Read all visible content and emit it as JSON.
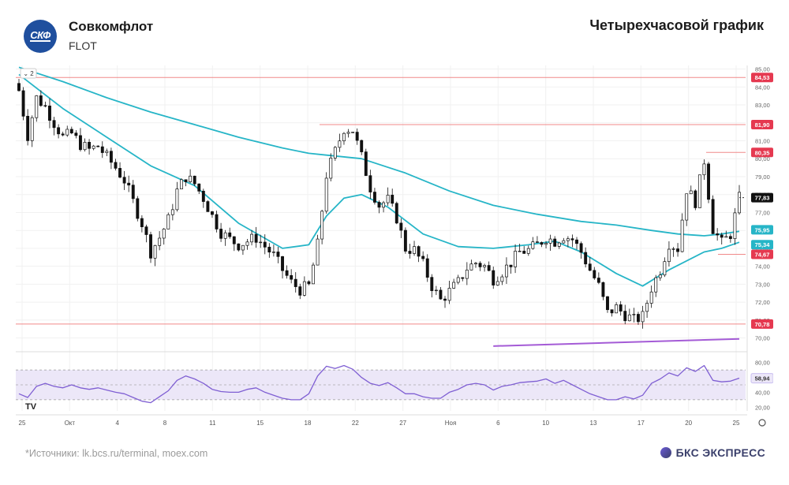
{
  "header": {
    "logo_text": "СКФ",
    "company": "Совкомфлот",
    "ticker": "FLOT",
    "chart_title": "Четырехчасовой график"
  },
  "footer": {
    "source_prefix": "*Источники: ",
    "source_link1": "lk.bcs.ru/terminal",
    "source_sep": ", ",
    "source_link2": "moex.com",
    "brand": "БКС ЭКСПРЕСС"
  },
  "colors": {
    "candle": "#111111",
    "ma_fast": "#26b5c7",
    "ma_slow": "#26b5c7",
    "level_line": "#f08a8a",
    "level_tag": "#e53950",
    "trend_line": "#a45bd6",
    "rsi_line": "#7f5fd3",
    "rsi_band": "#ece7f8"
  },
  "chart_data": [
    {
      "type": "candlestick",
      "instrument": "FLOT",
      "timeframe": "4H",
      "collapse_button": "2",
      "ylim": [
        69.5,
        85.2
      ],
      "y_ticks": [
        70,
        71,
        72,
        73,
        74,
        75,
        76,
        77,
        78,
        79,
        80,
        81,
        82,
        83,
        84,
        85
      ],
      "y_tick_labels": [
        "70,00",
        "71,00",
        "72,00",
        "73,00",
        "74,00",
        "75,00",
        "76,00",
        "77,00",
        "78,00",
        "79,00",
        "80,00",
        "81,00",
        "82,00",
        "83,00",
        "84,00",
        "85,00"
      ],
      "x_tick_labels": [
        "25",
        "Окт",
        "4",
        "8",
        "11",
        "15",
        "18",
        "22",
        "27",
        "Ноя",
        "6",
        "10",
        "13",
        "17",
        "20",
        "25"
      ],
      "close_path": [
        [
          0,
          83.8
        ],
        [
          2,
          81.3
        ],
        [
          4,
          83.4
        ],
        [
          6,
          82.9
        ],
        [
          8,
          82.0
        ],
        [
          10,
          81.2
        ],
        [
          12,
          81.4
        ],
        [
          14,
          80.8
        ],
        [
          16,
          80.5
        ],
        [
          18,
          80.7
        ],
        [
          20,
          80.1
        ],
        [
          22,
          79.5
        ],
        [
          24,
          78.8
        ],
        [
          26,
          77.6
        ],
        [
          28,
          76.4
        ],
        [
          30,
          74.8
        ],
        [
          32,
          75.6
        ],
        [
          34,
          76.6
        ],
        [
          36,
          78.2
        ],
        [
          38,
          79.0
        ],
        [
          40,
          78.6
        ],
        [
          42,
          77.8
        ],
        [
          44,
          76.8
        ],
        [
          46,
          75.9
        ],
        [
          48,
          75.5
        ],
        [
          50,
          75.2
        ],
        [
          52,
          75.4
        ],
        [
          54,
          75.6
        ],
        [
          56,
          75.1
        ],
        [
          58,
          74.6
        ],
        [
          60,
          73.8
        ],
        [
          62,
          73.1
        ],
        [
          64,
          72.7
        ],
        [
          66,
          72.9
        ],
        [
          68,
          75.2
        ],
        [
          70,
          79.1
        ],
        [
          72,
          80.4
        ],
        [
          74,
          81.7
        ],
        [
          76,
          81.6
        ],
        [
          78,
          80.1
        ],
        [
          80,
          78.4
        ],
        [
          82,
          77.4
        ],
        [
          84,
          77.7
        ],
        [
          86,
          76.7
        ],
        [
          88,
          75.0
        ],
        [
          90,
          74.9
        ],
        [
          92,
          74.1
        ],
        [
          94,
          72.9
        ],
        [
          96,
          72.1
        ],
        [
          98,
          72.6
        ],
        [
          100,
          73.1
        ],
        [
          102,
          73.9
        ],
        [
          104,
          74.2
        ],
        [
          106,
          74.0
        ],
        [
          108,
          73.3
        ],
        [
          110,
          73.7
        ],
        [
          112,
          74.2
        ],
        [
          114,
          74.8
        ],
        [
          116,
          74.9
        ],
        [
          118,
          75.2
        ],
        [
          120,
          75.6
        ],
        [
          122,
          75.4
        ],
        [
          124,
          75.7
        ],
        [
          126,
          75.5
        ],
        [
          128,
          74.8
        ],
        [
          130,
          73.8
        ],
        [
          132,
          72.9
        ],
        [
          134,
          71.4
        ],
        [
          136,
          71.7
        ],
        [
          138,
          71.3
        ],
        [
          140,
          71.0
        ],
        [
          142,
          71.2
        ],
        [
          144,
          72.8
        ],
        [
          146,
          73.8
        ],
        [
          148,
          75.3
        ],
        [
          150,
          75.0
        ],
        [
          152,
          78.3
        ],
        [
          154,
          77.6
        ],
        [
          156,
          79.9
        ],
        [
          158,
          76.1
        ],
        [
          160,
          75.3
        ],
        [
          162,
          75.8
        ],
        [
          164,
          77.8
        ]
      ],
      "series": [
        {
          "name": "",
          "kind": "moving-average-fast",
          "values": [
            [
              0,
              84.7
            ],
            [
              10,
              82.8
            ],
            [
              20,
              81.2
            ],
            [
              30,
              79.6
            ],
            [
              40,
              78.5
            ],
            [
              50,
              76.4
            ],
            [
              60,
              75.0
            ],
            [
              66,
              75.2
            ],
            [
              70,
              76.8
            ],
            [
              74,
              77.8
            ],
            [
              78,
              78.0
            ],
            [
              84,
              77.3
            ],
            [
              92,
              75.8
            ],
            [
              100,
              75.1
            ],
            [
              108,
              75.0
            ],
            [
              116,
              75.2
            ],
            [
              122,
              75.4
            ],
            [
              128,
              74.8
            ],
            [
              136,
              73.6
            ],
            [
              142,
              72.9
            ],
            [
              148,
              73.8
            ],
            [
              156,
              74.8
            ],
            [
              160,
              75.0
            ],
            [
              164,
              75.34
            ]
          ]
        },
        {
          "name": "",
          "kind": "moving-average-slow",
          "values": [
            [
              0,
              85.1
            ],
            [
              10,
              84.3
            ],
            [
              20,
              83.4
            ],
            [
              30,
              82.6
            ],
            [
              40,
              81.9
            ],
            [
              50,
              81.2
            ],
            [
              60,
              80.6
            ],
            [
              66,
              80.3
            ],
            [
              70,
              80.2
            ],
            [
              78,
              80.0
            ],
            [
              88,
              79.2
            ],
            [
              98,
              78.2
            ],
            [
              108,
              77.4
            ],
            [
              118,
              76.9
            ],
            [
              128,
              76.5
            ],
            [
              136,
              76.3
            ],
            [
              144,
              76.0
            ],
            [
              150,
              75.8
            ],
            [
              156,
              75.7
            ],
            [
              160,
              75.8
            ],
            [
              164,
              75.95
            ]
          ]
        }
      ],
      "levels": [
        84.53,
        81.9,
        80.35,
        74.67,
        70.78
      ],
      "level_labels": [
        "84,53",
        "81,90",
        "80,35",
        "74,67",
        "70,78"
      ],
      "last_price": 77.83,
      "last_price_label": "77,83",
      "ma_labels": [
        "75,95",
        "75,34"
      ],
      "trend_line": [
        [
          108,
          69.55
        ],
        [
          164,
          69.95
        ]
      ]
    },
    {
      "type": "line",
      "name": "RSI",
      "ylim": [
        15,
        85
      ],
      "y_ticks": [
        20,
        40,
        60,
        80
      ],
      "y_tick_labels": [
        "20,00",
        "40,00",
        "60,00",
        "80,00"
      ],
      "band": [
        30,
        70
      ],
      "last_value": 58.94,
      "last_value_label": "58,94",
      "values": [
        [
          0,
          38
        ],
        [
          2,
          33
        ],
        [
          4,
          48
        ],
        [
          6,
          52
        ],
        [
          8,
          48
        ],
        [
          10,
          46
        ],
        [
          12,
          50
        ],
        [
          14,
          46
        ],
        [
          16,
          44
        ],
        [
          18,
          46
        ],
        [
          20,
          43
        ],
        [
          22,
          40
        ],
        [
          24,
          38
        ],
        [
          26,
          33
        ],
        [
          28,
          28
        ],
        [
          30,
          26
        ],
        [
          32,
          34
        ],
        [
          34,
          42
        ],
        [
          36,
          56
        ],
        [
          38,
          62
        ],
        [
          40,
          58
        ],
        [
          42,
          52
        ],
        [
          44,
          44
        ],
        [
          46,
          41
        ],
        [
          48,
          40
        ],
        [
          50,
          40
        ],
        [
          52,
          44
        ],
        [
          54,
          46
        ],
        [
          56,
          40
        ],
        [
          58,
          36
        ],
        [
          60,
          32
        ],
        [
          62,
          30
        ],
        [
          64,
          30
        ],
        [
          66,
          38
        ],
        [
          68,
          62
        ],
        [
          70,
          75
        ],
        [
          72,
          72
        ],
        [
          74,
          76
        ],
        [
          76,
          71
        ],
        [
          78,
          60
        ],
        [
          80,
          52
        ],
        [
          82,
          49
        ],
        [
          84,
          53
        ],
        [
          86,
          46
        ],
        [
          88,
          38
        ],
        [
          90,
          38
        ],
        [
          92,
          34
        ],
        [
          94,
          32
        ],
        [
          96,
          32
        ],
        [
          98,
          40
        ],
        [
          100,
          44
        ],
        [
          102,
          50
        ],
        [
          104,
          52
        ],
        [
          106,
          50
        ],
        [
          108,
          43
        ],
        [
          110,
          48
        ],
        [
          112,
          50
        ],
        [
          114,
          53
        ],
        [
          116,
          54
        ],
        [
          118,
          55
        ],
        [
          120,
          58
        ],
        [
          122,
          52
        ],
        [
          124,
          56
        ],
        [
          126,
          50
        ],
        [
          128,
          44
        ],
        [
          130,
          38
        ],
        [
          132,
          34
        ],
        [
          134,
          30
        ],
        [
          136,
          30
        ],
        [
          138,
          34
        ],
        [
          140,
          31
        ],
        [
          142,
          36
        ],
        [
          144,
          52
        ],
        [
          146,
          58
        ],
        [
          148,
          66
        ],
        [
          150,
          62
        ],
        [
          152,
          73
        ],
        [
          154,
          68
        ],
        [
          156,
          76
        ],
        [
          158,
          56
        ],
        [
          160,
          54
        ],
        [
          162,
          55
        ],
        [
          164,
          59
        ]
      ]
    }
  ]
}
